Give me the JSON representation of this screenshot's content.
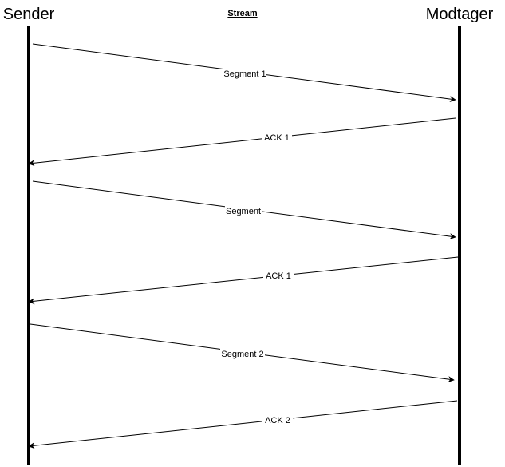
{
  "diagram": {
    "title": "Stream",
    "actors": {
      "sender": "Sender",
      "receiver": "Modtager"
    },
    "messages": [
      {
        "label": "Segment 1",
        "direction": "sender-to-receiver"
      },
      {
        "label": "ACK 1",
        "direction": "receiver-to-sender"
      },
      {
        "label": "Segment",
        "direction": "sender-to-receiver"
      },
      {
        "label": "ACK 1",
        "direction": "receiver-to-sender"
      },
      {
        "label": "Segment 2",
        "direction": "sender-to-receiver"
      },
      {
        "label": "ACK 2",
        "direction": "receiver-to-sender"
      }
    ],
    "colors": {
      "line": "#000000",
      "background": "#ffffff"
    }
  }
}
